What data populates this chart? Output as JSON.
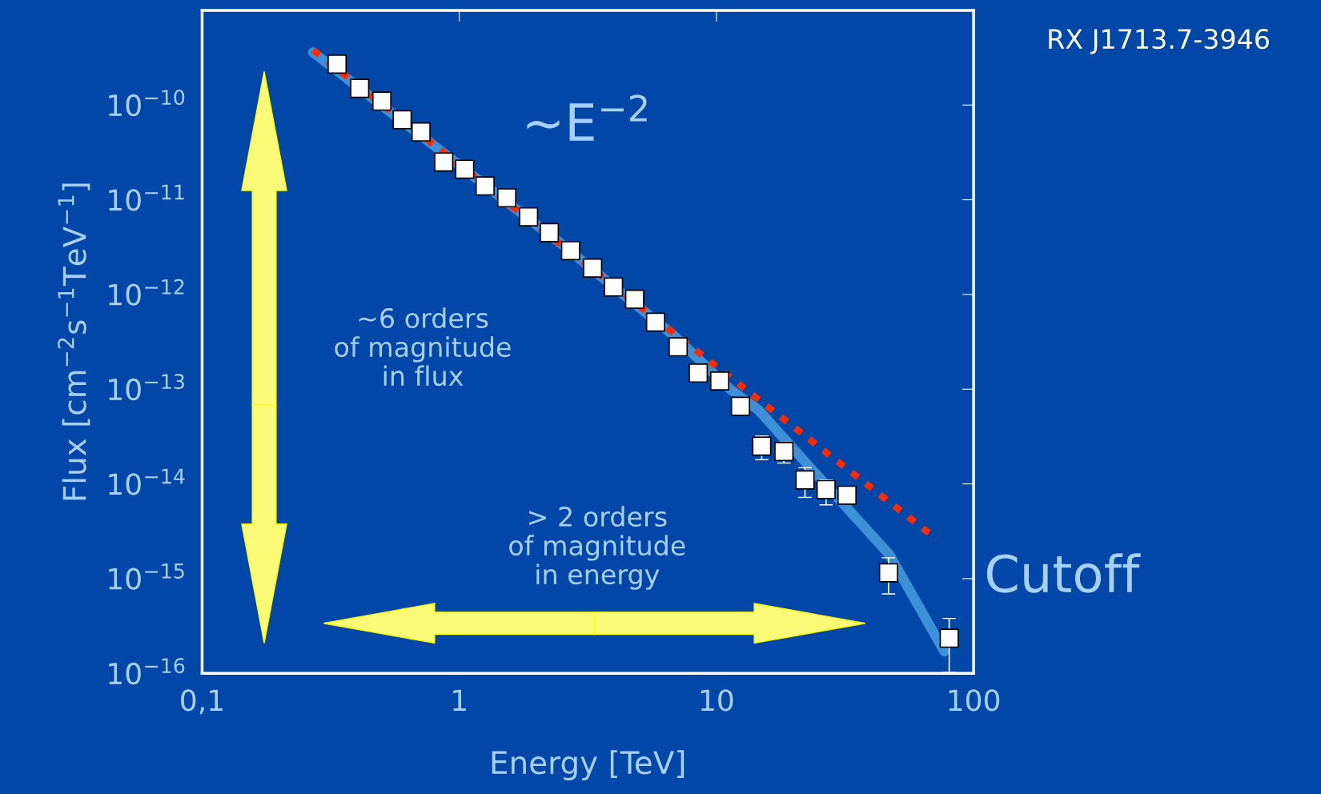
{
  "chart_data": {
    "type": "scatter",
    "title": "RX J1713.7-3946",
    "xlabel": "Energy [TeV]",
    "ylabel": "Flux [cm$^{−2}$s$^{−1}$TeV$^{−1}$]",
    "log": "xy",
    "xlim": [
      0.1,
      100
    ],
    "ylim": [
      1e-16,
      1e-09
    ],
    "xticks": [
      {
        "value": 0.1,
        "label": "0,1"
      },
      1,
      10,
      100
    ],
    "yticks": [
      {
        "value": 1e-16,
        "label": "10$^{−16}$"
      },
      {
        "value": 1e-15,
        "label": "10$^{−15}$"
      },
      {
        "value": 1e-14,
        "label": "10$^{−14}$"
      },
      {
        "value": 1e-13,
        "label": "10$^{−13}$"
      },
      {
        "value": 1e-12,
        "label": "10$^{−12}$"
      },
      {
        "value": 1e-11,
        "label": "10$^{−11}$"
      },
      {
        "value": 1e-10,
        "label": "10$^{−10}$"
      }
    ],
    "grid": false,
    "series": [
      {
        "type": "line",
        "color": "#3d8fd8",
        "x": [
          0.27,
          2.5,
          6.9,
          11.3,
          14.6,
          22.6,
          47,
          77
        ],
        "values": [
          3.6e-10,
          3.4e-12,
          3.6e-13,
          1e-13,
          6e-14,
          1.6e-14,
          1.8e-15,
          1.7e-16
        ],
        "line_style": "solid",
        "marker": "none"
      },
      {
        "type": "line",
        "color": "#ff2a00",
        "x": [
          0.27,
          72
        ],
        "values": [
          3.8e-10,
          2.6e-15
        ],
        "line_style": "dotted",
        "marker": "none"
      },
      {
        "color": "#ffffff",
        "marker": "square",
        "x": [
          0.335,
          0.41,
          0.5,
          0.6,
          0.71,
          0.87,
          1.05,
          1.26,
          1.53,
          1.86,
          2.24,
          2.71,
          3.3,
          3.98,
          4.81,
          5.8,
          7.1,
          8.5,
          10.3,
          12.4,
          15.0,
          18.3,
          22.1,
          26.7,
          32.2,
          46.7,
          80.4
        ],
        "values": [
          2.7e-10,
          1.5e-10,
          1.1e-10,
          7e-11,
          5.2e-11,
          2.5e-11,
          2.1e-11,
          1.4e-11,
          1.05e-11,
          6.6e-12,
          4.5e-12,
          2.9e-12,
          1.9e-12,
          1.2e-12,
          8.9e-13,
          5.1e-13,
          2.8e-13,
          1.48e-13,
          1.22e-13,
          6.6e-14,
          2.5e-14,
          2.2e-14,
          1.1e-14,
          8.7e-15,
          7.6e-15,
          1.15e-15,
          2.35e-16
        ],
        "errors": [
          null,
          null,
          null,
          null,
          null,
          null,
          null,
          null,
          null,
          null,
          null,
          null,
          null,
          null,
          null,
          null,
          null,
          null,
          null,
          null,
          [
            1.8e-14,
            3.2e-14
          ],
          [
            1.66e-14,
            2.75e-14
          ],
          [
            7.2e-15,
            1.48e-14
          ],
          [
            6e-15,
            1.1e-14
          ],
          [
            6.3e-15,
            9.3e-15
          ],
          [
            6.9e-16,
            1.66e-15
          ],
          [
            1.02e-16,
            3.8e-16
          ]
        ]
      }
    ],
    "annotations": [
      "~E$^{−2}$",
      "~6 orders\nof magnitude\nin flux",
      "> 2 orders\nof magnitude\nin energy",
      "Cutoff"
    ]
  }
}
